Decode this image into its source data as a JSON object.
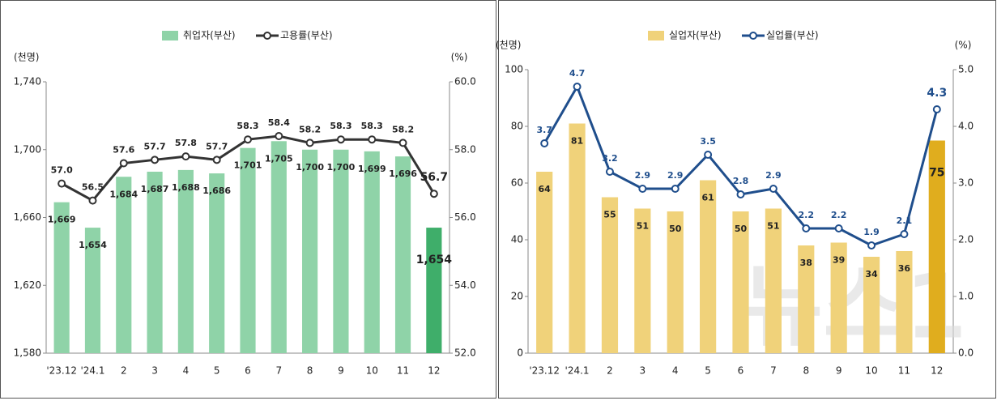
{
  "chart_data": [
    {
      "type": "combo",
      "y_unit": "(천명)",
      "y2_unit": "(%)",
      "categories": [
        "'23.12",
        "'24.1",
        "2",
        "3",
        "4",
        "5",
        "6",
        "7",
        "8",
        "9",
        "10",
        "11",
        "12"
      ],
      "series": [
        {
          "name": "취업자(부산)",
          "type": "bar",
          "color": "#8fd3a8",
          "colors": [
            "#8fd3a8",
            "#8fd3a8",
            "#8fd3a8",
            "#8fd3a8",
            "#8fd3a8",
            "#8fd3a8",
            "#8fd3a8",
            "#8fd3a8",
            "#8fd3a8",
            "#8fd3a8",
            "#8fd3a8",
            "#8fd3a8",
            "#3fae6a"
          ],
          "values": [
            1669,
            1654,
            1684,
            1687,
            1688,
            1686,
            1701,
            1705,
            1700,
            1700,
            1699,
            1696,
            1654
          ],
          "value_labels": [
            "1,669",
            "1,654",
            "1,684",
            "1,687",
            "1,688",
            "1,686",
            "1,701",
            "1,705",
            "1,700",
            "1,700",
            "1,699",
            "1,696",
            "1,654"
          ]
        },
        {
          "name": "고용률(부산)",
          "type": "line",
          "axis": "y2",
          "color": "#333333",
          "values": [
            57.0,
            56.5,
            57.6,
            57.7,
            57.8,
            57.7,
            58.3,
            58.4,
            58.2,
            58.3,
            58.3,
            58.2,
            56.7
          ],
          "value_labels": [
            "57.0",
            "56.5",
            "57.6",
            "57.7",
            "57.8",
            "57.7",
            "58.3",
            "58.4",
            "58.2",
            "58.3",
            "58.3",
            "58.2",
            "56.7"
          ]
        }
      ],
      "ylim": [
        1580,
        1740
      ],
      "yticks": [
        {
          "value": 1580,
          "label": "1,580"
        },
        {
          "value": 1620,
          "label": "1,620"
        },
        {
          "value": 1660,
          "label": "1,660"
        },
        {
          "value": 1700,
          "label": "1,700"
        },
        {
          "value": 1740,
          "label": "1,740"
        }
      ],
      "y2lim": [
        52,
        60
      ],
      "y2ticks": [
        {
          "value": 52,
          "label": "52.0"
        },
        {
          "value": 54,
          "label": "54.0"
        },
        {
          "value": 56,
          "label": "56.0"
        },
        {
          "value": 58,
          "label": "58.0"
        },
        {
          "value": 60,
          "label": "60.0"
        }
      ],
      "label_color": "#222222"
    },
    {
      "type": "combo",
      "y_unit": "(천명)",
      "y2_unit": "(%)",
      "categories": [
        "'23.12",
        "'24.1",
        "2",
        "3",
        "4",
        "5",
        "6",
        "7",
        "8",
        "9",
        "10",
        "11",
        "12"
      ],
      "series": [
        {
          "name": "실업자(부산)",
          "type": "bar",
          "color": "#f0d27a",
          "colors": [
            "#f0d27a",
            "#f0d27a",
            "#f0d27a",
            "#f0d27a",
            "#f0d27a",
            "#f0d27a",
            "#f0d27a",
            "#f0d27a",
            "#f0d27a",
            "#f0d27a",
            "#f0d27a",
            "#f0d27a",
            "#e0ad1e"
          ],
          "values": [
            64,
            81,
            55,
            51,
            50,
            61,
            50,
            51,
            38,
            39,
            34,
            36,
            75
          ]
        },
        {
          "name": "실업률(부산)",
          "type": "line",
          "axis": "y2",
          "color": "#1f4e8c",
          "values": [
            3.7,
            4.7,
            3.2,
            2.9,
            2.9,
            3.5,
            2.8,
            2.9,
            2.2,
            2.2,
            1.9,
            2.1,
            4.3
          ]
        }
      ],
      "ylim": [
        0,
        100
      ],
      "yticks": [
        0,
        20,
        40,
        60,
        80,
        100
      ],
      "y2lim": [
        0,
        5
      ],
      "y2ticks": [
        {
          "value": 0,
          "label": "0.0"
        },
        {
          "value": 1,
          "label": "1.0"
        },
        {
          "value": 2,
          "label": "2.0"
        },
        {
          "value": 3,
          "label": "3.0"
        },
        {
          "value": 4,
          "label": "4.0"
        },
        {
          "value": 5,
          "label": "5.0"
        }
      ],
      "label_color": "#1f4e8c",
      "watermark": "뉴스1"
    }
  ]
}
